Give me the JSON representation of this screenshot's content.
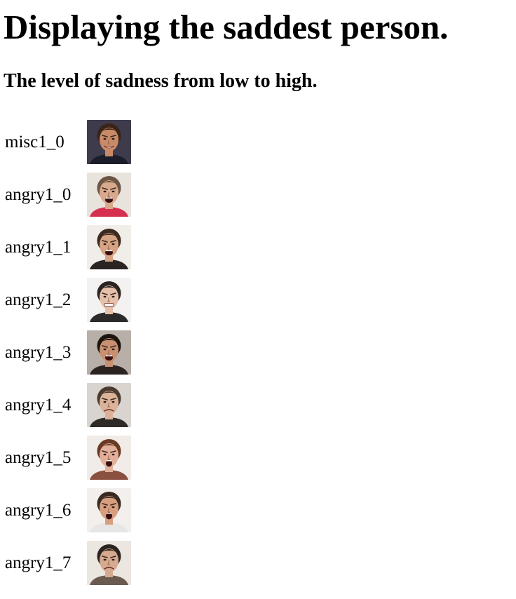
{
  "page": {
    "title": "Displaying the saddest person.",
    "subtitle": "The level of sadness from low to high."
  },
  "items": [
    {
      "label": "misc1_0",
      "bg": "#3d3b4c",
      "skin": "#c98a68",
      "hair": "#3a2418",
      "shirt": "#1b1e2a",
      "mouth": "smile"
    },
    {
      "label": "angry1_0",
      "bg": "#e9e3dd",
      "skin": "#d8a98d",
      "hair": "#6b5544",
      "shirt": "#d63050",
      "mouth": "shout"
    },
    {
      "label": "angry1_1",
      "bg": "#f1ede8",
      "skin": "#d6a383",
      "hair": "#3a2a20",
      "shirt": "#2a2422",
      "mouth": "shout"
    },
    {
      "label": "angry1_2",
      "bg": "#f4f2f0",
      "skin": "#e5c0aa",
      "hair": "#2b2522",
      "shirt": "#2a2a2a",
      "mouth": "grimace"
    },
    {
      "label": "angry1_3",
      "bg": "#b8b0a8",
      "skin": "#c89070",
      "hair": "#1c140f",
      "shirt": "#2b2320",
      "mouth": "shout"
    },
    {
      "label": "angry1_4",
      "bg": "#d9d4cf",
      "skin": "#dbb39a",
      "hair": "#4a3a30",
      "shirt": "#2e2a26",
      "mouth": "frown"
    },
    {
      "label": "angry1_5",
      "bg": "#f2ece8",
      "skin": "#e2b09a",
      "hair": "#6a3a24",
      "shirt": "#8a5040",
      "mouth": "scream"
    },
    {
      "label": "angry1_6",
      "bg": "#f3efec",
      "skin": "#d89e80",
      "hair": "#3a2a22",
      "shirt": "#e8e6e4",
      "mouth": "scream"
    },
    {
      "label": "angry1_7",
      "bg": "#ece6e0",
      "skin": "#d6aa8e",
      "hair": "#2c2420",
      "shirt": "#6a5a50",
      "mouth": "frown"
    }
  ]
}
